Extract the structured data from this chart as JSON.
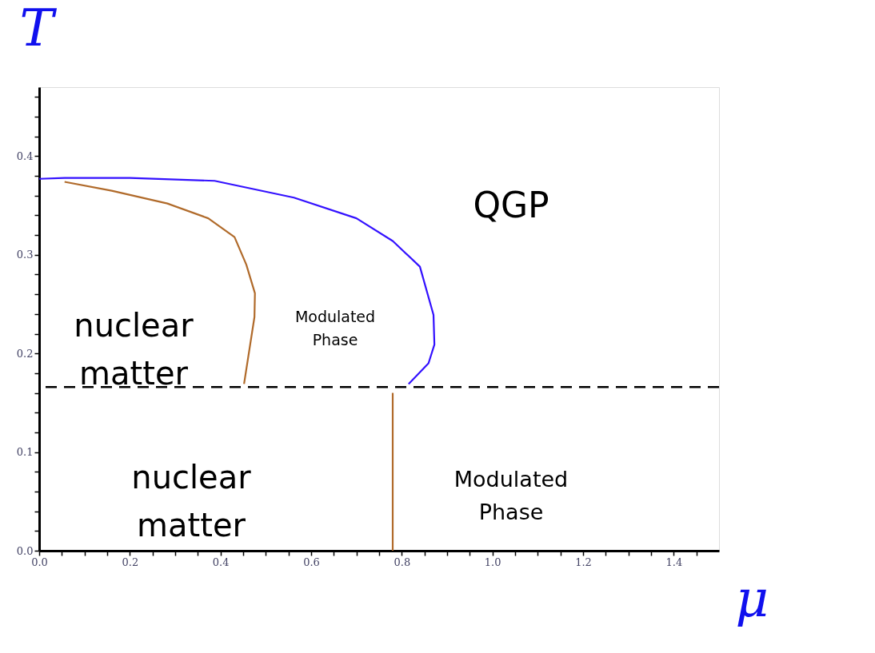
{
  "chart_data": {
    "type": "line",
    "xlabel": "μ",
    "ylabel": "T",
    "xlim": [
      0,
      1.5
    ],
    "ylim": [
      0,
      0.47
    ],
    "xticks": [
      {
        "value": 0,
        "label": "0.0"
      },
      {
        "value": 0.05,
        "label": null
      },
      {
        "value": 0.1,
        "label": null
      },
      {
        "value": 0.15,
        "label": null
      },
      {
        "value": 0.2,
        "label": "0.2"
      },
      {
        "value": 0.25,
        "label": null
      },
      {
        "value": 0.3,
        "label": null
      },
      {
        "value": 0.35,
        "label": null
      },
      {
        "value": 0.4,
        "label": "0.4"
      },
      {
        "value": 0.45,
        "label": null
      },
      {
        "value": 0.5,
        "label": null
      },
      {
        "value": 0.55,
        "label": null
      },
      {
        "value": 0.6,
        "label": "0.6"
      },
      {
        "value": 0.65,
        "label": null
      },
      {
        "value": 0.7,
        "label": null
      },
      {
        "value": 0.75,
        "label": null
      },
      {
        "value": 0.8,
        "label": "0.8"
      },
      {
        "value": 0.85,
        "label": null
      },
      {
        "value": 0.9,
        "label": null
      },
      {
        "value": 0.95,
        "label": null
      },
      {
        "value": 1.0,
        "label": "1.0"
      },
      {
        "value": 1.05,
        "label": null
      },
      {
        "value": 1.1,
        "label": null
      },
      {
        "value": 1.15,
        "label": null
      },
      {
        "value": 1.2,
        "label": "1.2"
      },
      {
        "value": 1.25,
        "label": null
      },
      {
        "value": 1.3,
        "label": null
      },
      {
        "value": 1.35,
        "label": null
      },
      {
        "value": 1.4,
        "label": "1.4"
      },
      {
        "value": 1.45,
        "label": null
      }
    ],
    "yticks": [
      {
        "value": 0,
        "label": "0.0"
      },
      {
        "value": 0.02,
        "label": null
      },
      {
        "value": 0.04,
        "label": null
      },
      {
        "value": 0.06,
        "label": null
      },
      {
        "value": 0.08,
        "label": null
      },
      {
        "value": 0.1,
        "label": "0.1"
      },
      {
        "value": 0.12,
        "label": null
      },
      {
        "value": 0.14,
        "label": null
      },
      {
        "value": 0.16,
        "label": null
      },
      {
        "value": 0.18,
        "label": null
      },
      {
        "value": 0.2,
        "label": "0.2"
      },
      {
        "value": 0.22,
        "label": null
      },
      {
        "value": 0.24,
        "label": null
      },
      {
        "value": 0.26,
        "label": null
      },
      {
        "value": 0.28,
        "label": null
      },
      {
        "value": 0.3,
        "label": "0.3"
      },
      {
        "value": 0.32,
        "label": null
      },
      {
        "value": 0.34,
        "label": null
      },
      {
        "value": 0.36,
        "label": null
      },
      {
        "value": 0.38,
        "label": null
      },
      {
        "value": 0.4,
        "label": "0.4"
      },
      {
        "value": 0.42,
        "label": null
      },
      {
        "value": 0.44,
        "label": null
      },
      {
        "value": 0.46,
        "label": null
      }
    ],
    "series": [
      {
        "color": "#3311ff",
        "x": [
          0,
          0.056,
          0.2,
          0.387,
          0.562,
          0.7,
          0.78,
          0.84,
          0.87,
          0.872,
          0.859,
          0.815
        ],
        "values": [
          0.377,
          0.378,
          0.378,
          0.375,
          0.358,
          0.337,
          0.314,
          0.288,
          0.239,
          0.209,
          0.19,
          0.169
        ]
      },
      {
        "color": "#b06a2a",
        "x": [
          0.056,
          0.16,
          0.283,
          0.373,
          0.431,
          0.457,
          0.476,
          0.475,
          0.452
        ],
        "values": [
          0.374,
          0.365,
          0.352,
          0.337,
          0.318,
          0.29,
          0.261,
          0.237,
          0.169
        ]
      },
      {
        "color": "#b06a2a",
        "x": [
          0.78,
          0.78
        ],
        "values": [
          0,
          0.16
        ]
      }
    ],
    "ref_lines": [
      {
        "axis": "y",
        "value": 0.166,
        "label": null,
        "color": "#000000",
        "line_style": "dashed"
      }
    ],
    "annotations": [
      "QGP",
      "nuclear\nmatter",
      "Modulated\nPhase",
      "nuclear\nmatter",
      "Modulated\nPhase"
    ],
    "grid": false,
    "line_style": "solid"
  }
}
